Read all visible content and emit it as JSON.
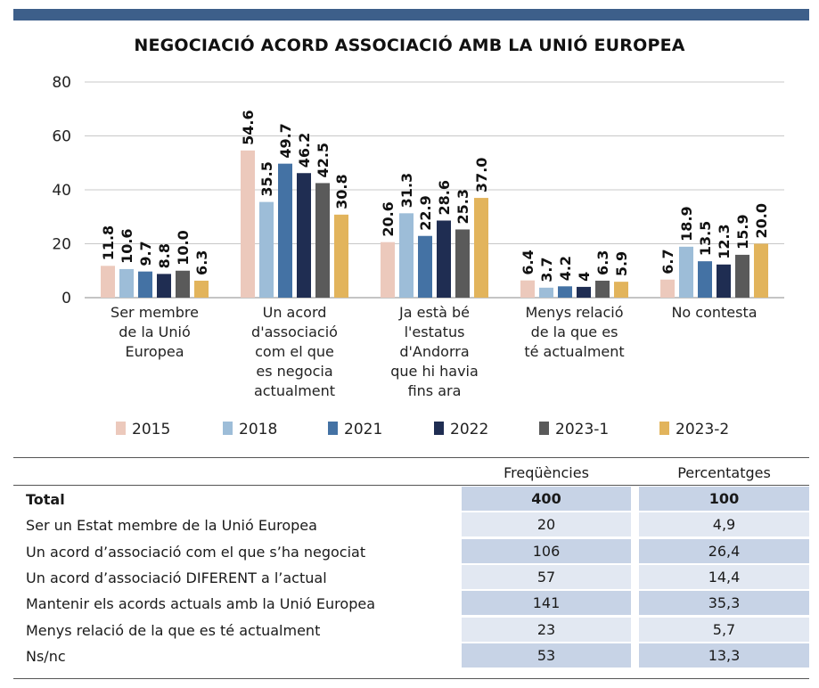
{
  "chart_data": {
    "type": "bar",
    "title": "NEGOCIACIÓ ACORD ASSOCIACIÓ AMB LA UNIÓ EUROPEA",
    "ylim": [
      0,
      80
    ],
    "yticks": [
      "0",
      "20",
      "40",
      "60",
      "80"
    ],
    "grid": true,
    "legend_position": "bottom",
    "categories": [
      [
        "Ser membre",
        "de la Unió",
        "Europea"
      ],
      [
        "Un acord",
        "d'associació",
        "com el que",
        "es negocia",
        "actualment"
      ],
      [
        "Ja està bé",
        "l'estatus",
        "d'Andorra",
        "que hi havia",
        "fins ara"
      ],
      [
        "Menys relació",
        "de la que es",
        "té actualment"
      ],
      [
        "No contesta"
      ]
    ],
    "series": [
      {
        "name": "2015",
        "color": "#ecc9bc",
        "values": [
          11.8,
          54.6,
          20.6,
          6.4,
          6.7
        ],
        "labels": [
          "11.8",
          "54.6",
          "20.6",
          "6.4",
          "6.7"
        ]
      },
      {
        "name": "2018",
        "color": "#9dbdd8",
        "values": [
          10.6,
          35.5,
          31.3,
          3.7,
          18.9
        ],
        "labels": [
          "10.6",
          "35.5",
          "31.3",
          "3.7",
          "18.9"
        ]
      },
      {
        "name": "2021",
        "color": "#4472a4",
        "values": [
          9.7,
          49.7,
          22.9,
          4.2,
          13.5
        ],
        "labels": [
          "9.7",
          "49.7",
          "22.9",
          "4.2",
          "13.5"
        ]
      },
      {
        "name": "2022",
        "color": "#1f2d52",
        "values": [
          8.8,
          46.2,
          28.6,
          4,
          12.3
        ],
        "labels": [
          "8.8",
          "46.2",
          "28.6",
          "4",
          "12.3"
        ]
      },
      {
        "name": "2023-1",
        "color": "#5a5a5a",
        "values": [
          10.0,
          42.5,
          25.3,
          6.3,
          15.9
        ],
        "labels": [
          "10.0",
          "42.5",
          "25.3",
          "6.3",
          "15.9"
        ]
      },
      {
        "name": "2023-2",
        "color": "#e2b45c",
        "values": [
          6.3,
          30.8,
          37.0,
          5.9,
          20.0
        ],
        "labels": [
          "6.3",
          "30.8",
          "37.0",
          "5.9",
          "20.0"
        ]
      }
    ]
  },
  "table": {
    "headers": [
      "Freqüències",
      "Percentatges"
    ],
    "rows": [
      {
        "label": "Total",
        "freq": "400",
        "pct": "100",
        "bold": true
      },
      {
        "label": "Ser un Estat membre de la Unió Europea",
        "freq": "20",
        "pct": "4,9"
      },
      {
        "label": "Un acord d’associació com el que s’ha negociat",
        "freq": "106",
        "pct": "26,4"
      },
      {
        "label": "Un acord d’associació DIFERENT a l’actual",
        "freq": "57",
        "pct": "14,4"
      },
      {
        "label": "Mantenir els acords actuals amb la Unió Europea",
        "freq": "141",
        "pct": "35,3"
      },
      {
        "label": "Menys relació de la que es té actualment",
        "freq": "23",
        "pct": "5,7"
      },
      {
        "label": "Ns/nc",
        "freq": "53",
        "pct": "13,3"
      }
    ]
  }
}
